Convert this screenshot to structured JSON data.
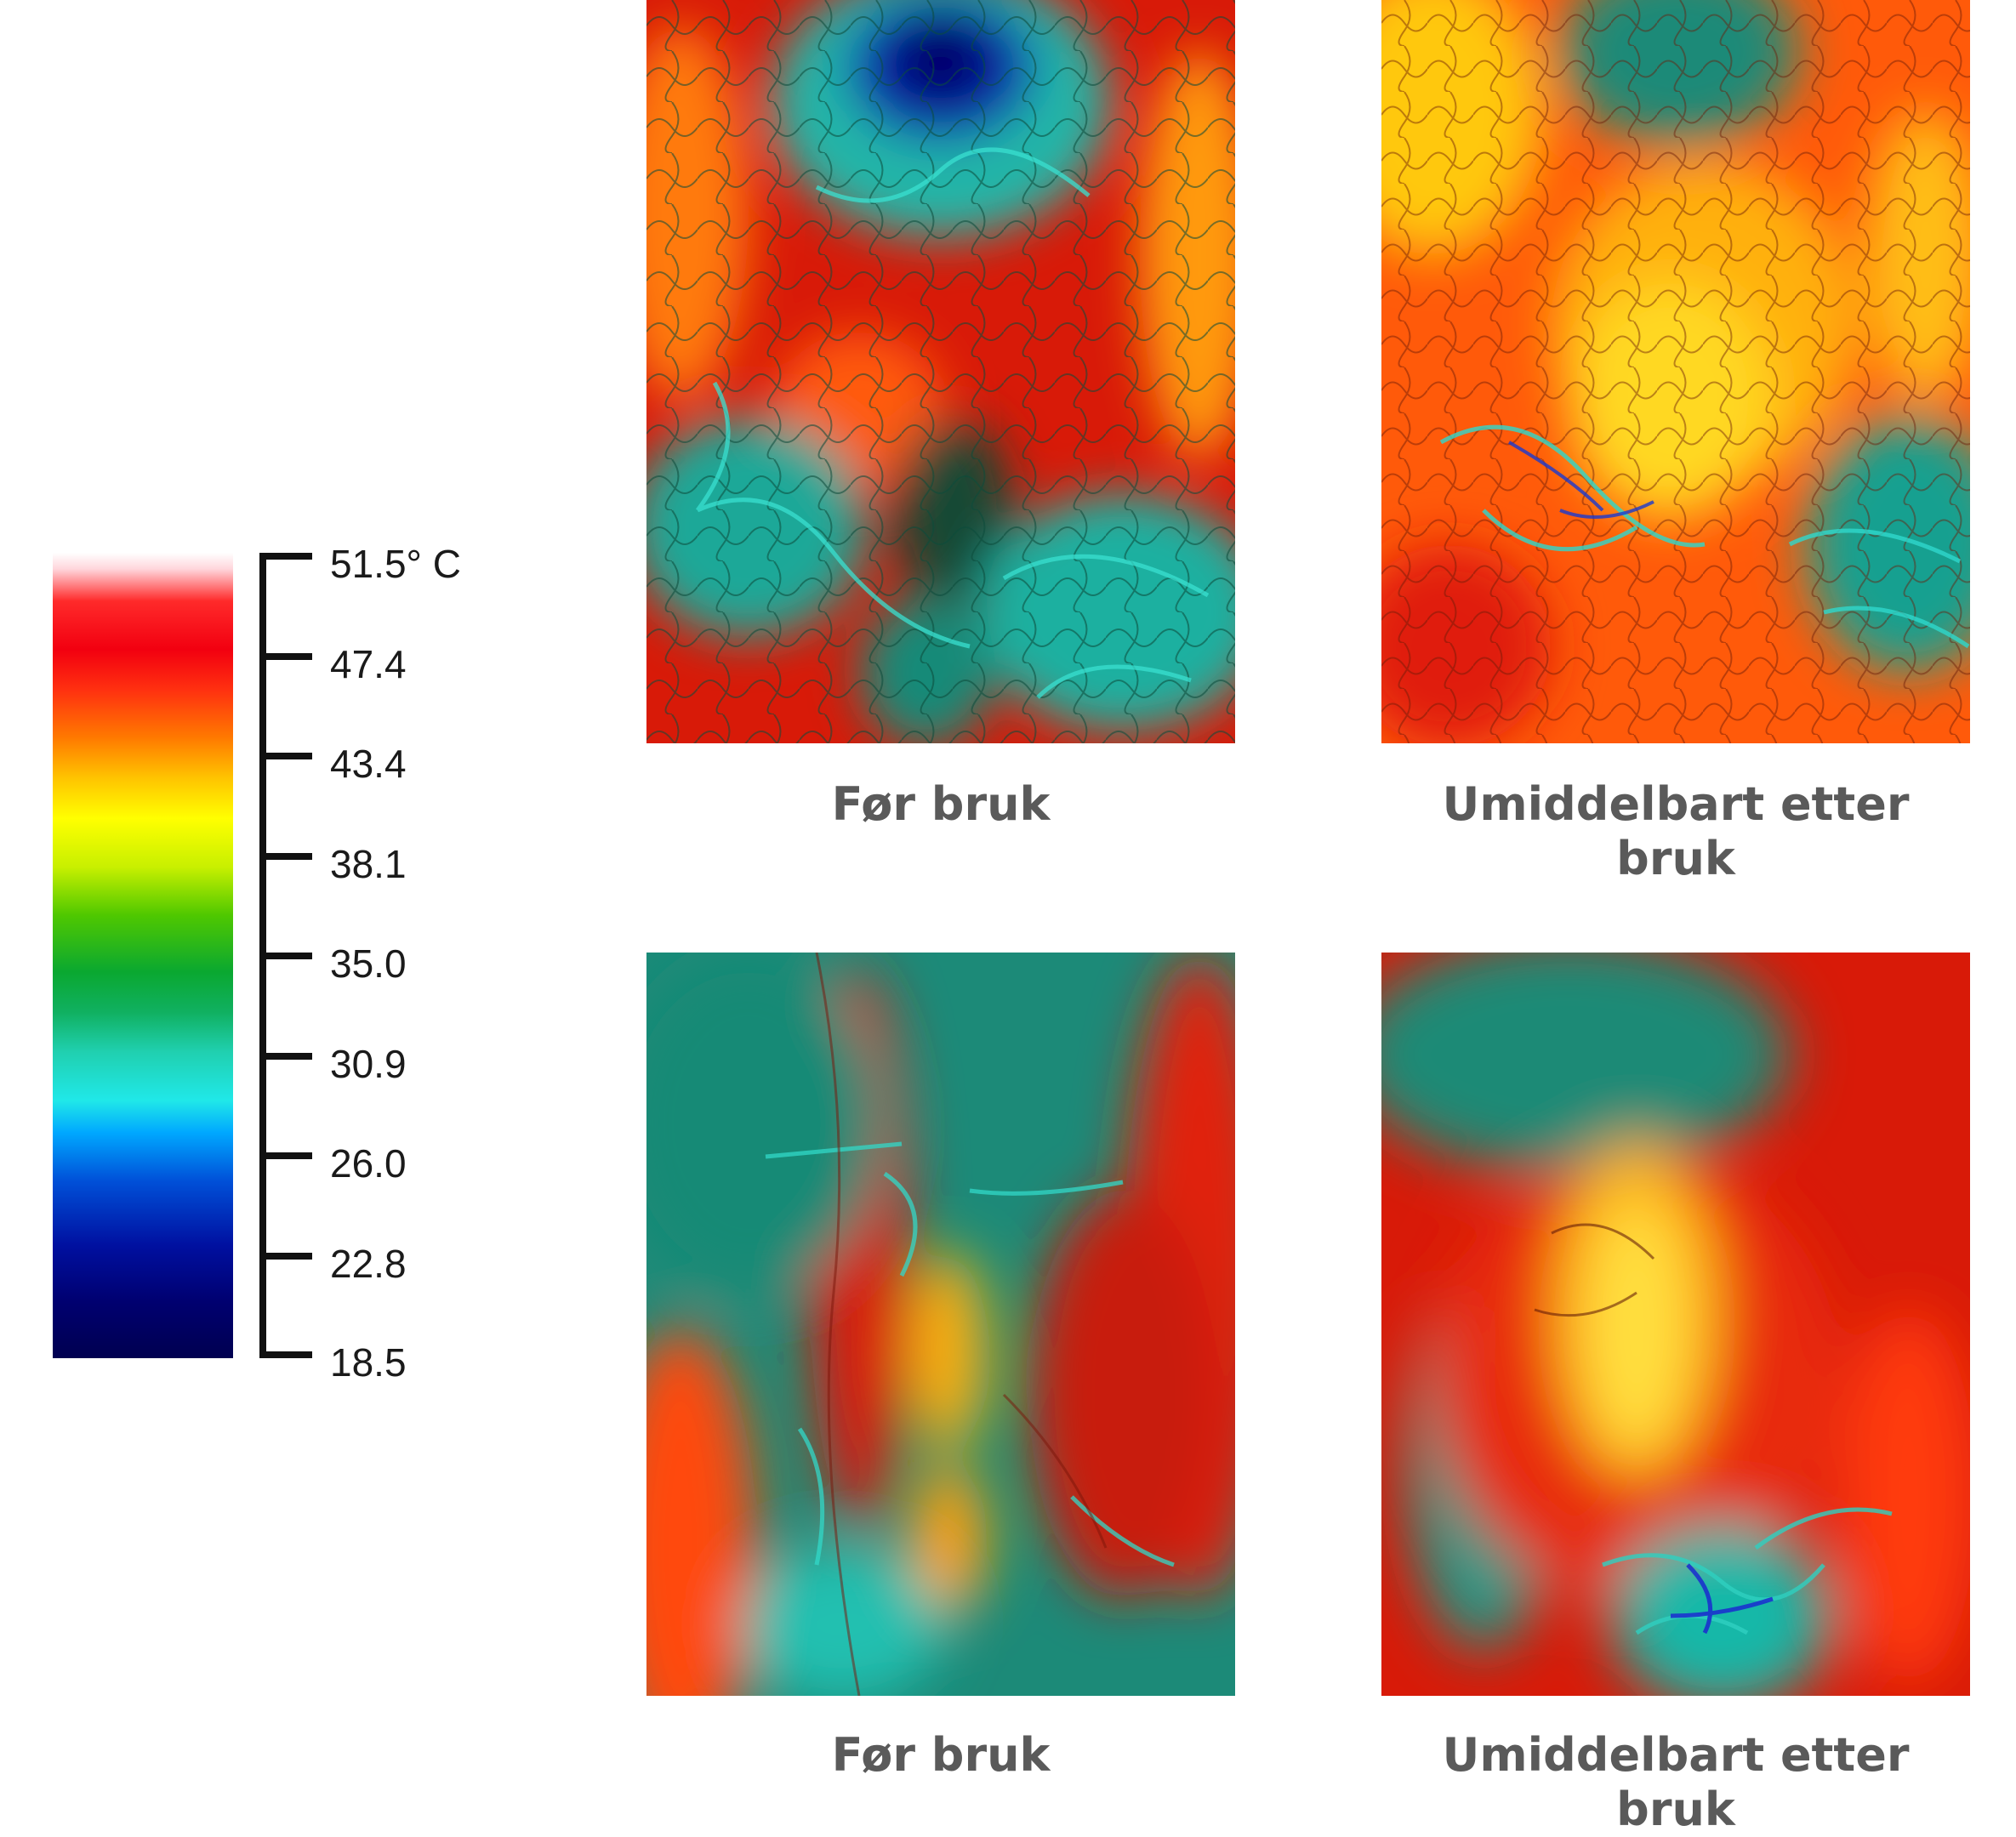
{
  "legend": {
    "ticks": [
      "51.5° C",
      "47.4",
      "43.4",
      "38.1",
      "35.0",
      "30.9",
      "26.0",
      "22.8",
      "18.5"
    ]
  },
  "panels": [
    {
      "caption": "Før bruk"
    },
    {
      "caption": "Umiddelbart etter bruk"
    },
    {
      "caption": "Før bruk"
    },
    {
      "caption": "Umiddelbart etter bruk"
    }
  ],
  "colors": {
    "caption": "#5a5a5a",
    "hot": "#ff2a00",
    "warm": "#ffd000",
    "cool": "#1a9a88",
    "cold": "#1010a0"
  }
}
